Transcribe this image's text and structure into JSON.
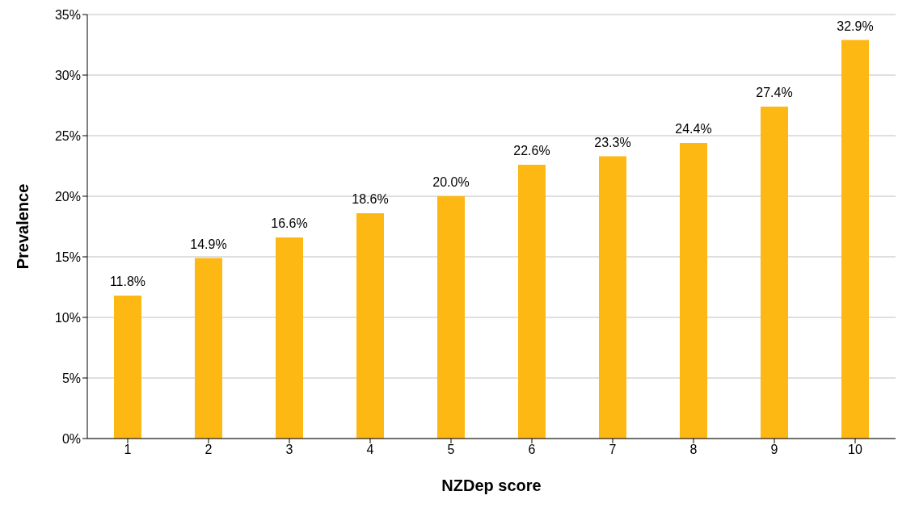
{
  "chart_data": {
    "type": "bar",
    "xlabel": "NZDep score",
    "ylabel": "Prevalence",
    "categories": [
      "1",
      "2",
      "3",
      "4",
      "5",
      "6",
      "7",
      "8",
      "9",
      "10"
    ],
    "values": [
      11.8,
      14.9,
      16.6,
      18.6,
      20.0,
      22.6,
      23.3,
      24.4,
      27.4,
      32.9
    ],
    "value_labels": [
      "11.8%",
      "14.9%",
      "16.6%",
      "18.6%",
      "20.0%",
      "22.6%",
      "23.3%",
      "24.4%",
      "27.4%",
      "32.9%"
    ],
    "color": "#fdb813",
    "ylim": [
      0,
      35
    ],
    "yticks": [
      {
        "value": 0,
        "label": "0%"
      },
      {
        "value": 5,
        "label": "5%"
      },
      {
        "value": 10,
        "label": "10%"
      },
      {
        "value": 15,
        "label": "15%"
      },
      {
        "value": 20,
        "label": "20%"
      },
      {
        "value": 25,
        "label": "25%"
      },
      {
        "value": 30,
        "label": "30%"
      },
      {
        "value": 35,
        "label": "35%"
      }
    ],
    "grid": "y",
    "legend": false
  }
}
